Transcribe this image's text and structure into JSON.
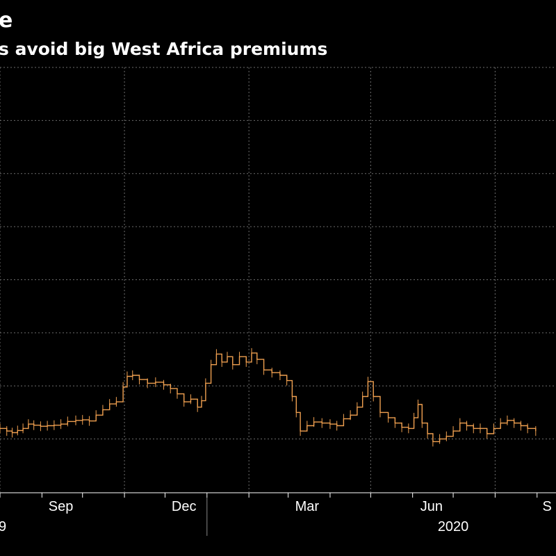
{
  "header": {
    "title": "e",
    "subtitle": "s avoid big West Africa premiums"
  },
  "colors": {
    "background": "#000000",
    "series": "#f0a050",
    "grid": "#6e6e6e",
    "axis": "#ffffff"
  },
  "chart_data": {
    "type": "line",
    "title": "e",
    "subtitle": "s avoid big West Africa premiums",
    "xlabel": "",
    "ylabel": "",
    "grid": true,
    "legend": "none",
    "x_tick_labels": [
      "Sep",
      "Dec",
      "Mar",
      "Jun",
      "S"
    ],
    "year_labels": [
      "9",
      "2020"
    ],
    "x_range": [
      "2019-08-01",
      "2020-09-15"
    ],
    "y_range": [
      0,
      8
    ],
    "series": [
      {
        "points": [
          [
            "2019-08-01",
            1.2
          ],
          [
            "2019-08-06",
            1.15
          ],
          [
            "2019-08-10",
            1.12
          ],
          [
            "2019-08-14",
            1.16
          ],
          [
            "2019-08-18",
            1.2
          ],
          [
            "2019-08-22",
            1.28
          ],
          [
            "2019-08-26",
            1.26
          ],
          [
            "2019-08-31",
            1.24
          ],
          [
            "2019-09-05",
            1.25
          ],
          [
            "2019-09-10",
            1.26
          ],
          [
            "2019-09-15",
            1.28
          ],
          [
            "2019-09-20",
            1.33
          ],
          [
            "2019-09-26",
            1.35
          ],
          [
            "2019-10-01",
            1.36
          ],
          [
            "2019-10-06",
            1.34
          ],
          [
            "2019-10-11",
            1.45
          ],
          [
            "2019-10-16",
            1.55
          ],
          [
            "2019-10-21",
            1.66
          ],
          [
            "2019-10-26",
            1.7
          ],
          [
            "2019-10-31",
            1.98
          ],
          [
            "2019-11-03",
            2.18
          ],
          [
            "2019-11-07",
            2.2
          ],
          [
            "2019-11-12",
            2.12
          ],
          [
            "2019-11-18",
            2.05
          ],
          [
            "2019-11-24",
            2.07
          ],
          [
            "2019-11-30",
            2.02
          ],
          [
            "2019-12-05",
            1.95
          ],
          [
            "2019-12-10",
            1.85
          ],
          [
            "2019-12-15",
            1.7
          ],
          [
            "2019-12-20",
            1.75
          ],
          [
            "2019-12-25",
            1.6
          ],
          [
            "2019-12-28",
            1.72
          ],
          [
            "2019-12-31",
            2.05
          ],
          [
            "2020-01-04",
            2.4
          ],
          [
            "2020-01-08",
            2.6
          ],
          [
            "2020-01-12",
            2.45
          ],
          [
            "2020-01-16",
            2.55
          ],
          [
            "2020-01-20",
            2.4
          ],
          [
            "2020-01-25",
            2.55
          ],
          [
            "2020-01-30",
            2.45
          ],
          [
            "2020-02-03",
            2.62
          ],
          [
            "2020-02-07",
            2.5
          ],
          [
            "2020-02-12",
            2.3
          ],
          [
            "2020-02-18",
            2.25
          ],
          [
            "2020-02-24",
            2.2
          ],
          [
            "2020-02-29",
            2.1
          ],
          [
            "2020-03-04",
            1.8
          ],
          [
            "2020-03-07",
            1.5
          ],
          [
            "2020-03-10",
            1.15
          ],
          [
            "2020-03-15",
            1.25
          ],
          [
            "2020-03-20",
            1.32
          ],
          [
            "2020-03-26",
            1.3
          ],
          [
            "2020-04-01",
            1.28
          ],
          [
            "2020-04-06",
            1.25
          ],
          [
            "2020-04-11",
            1.38
          ],
          [
            "2020-04-16",
            1.45
          ],
          [
            "2020-04-21",
            1.6
          ],
          [
            "2020-04-25",
            1.8
          ],
          [
            "2020-04-29",
            2.08
          ],
          [
            "2020-05-03",
            1.8
          ],
          [
            "2020-05-08",
            1.5
          ],
          [
            "2020-05-14",
            1.4
          ],
          [
            "2020-05-19",
            1.3
          ],
          [
            "2020-05-24",
            1.22
          ],
          [
            "2020-05-29",
            1.2
          ],
          [
            "2020-06-02",
            1.4
          ],
          [
            "2020-06-05",
            1.65
          ],
          [
            "2020-06-08",
            1.3
          ],
          [
            "2020-06-12",
            1.1
          ],
          [
            "2020-06-16",
            0.95
          ],
          [
            "2020-06-21",
            1.0
          ],
          [
            "2020-06-26",
            1.05
          ],
          [
            "2020-07-01",
            1.15
          ],
          [
            "2020-07-06",
            1.3
          ],
          [
            "2020-07-11",
            1.25
          ],
          [
            "2020-07-16",
            1.2
          ],
          [
            "2020-07-21",
            1.2
          ],
          [
            "2020-07-26",
            1.1
          ],
          [
            "2020-07-31",
            1.2
          ],
          [
            "2020-08-05",
            1.3
          ],
          [
            "2020-08-10",
            1.35
          ],
          [
            "2020-08-15",
            1.3
          ],
          [
            "2020-08-20",
            1.25
          ],
          [
            "2020-08-25",
            1.2
          ],
          [
            "2020-08-31",
            1.15
          ]
        ]
      }
    ]
  }
}
